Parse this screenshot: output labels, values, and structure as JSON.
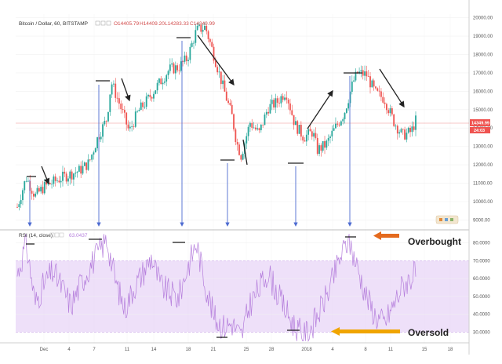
{
  "price_legend": {
    "symbol": "Bitcoin / Dollar, 60, BITSTAMP",
    "open": "O14405.79",
    "high": "H14409.20",
    "low": "L14283.33",
    "close": "C14349.99"
  },
  "rsi_legend": {
    "name": "RSI (14, close)",
    "value": "63.0437"
  },
  "annotations": {
    "overbought": "Overbought",
    "oversold": "Oversold"
  },
  "last_price_badge": "14349.99",
  "last_price_badge2": "24:03",
  "colors": {
    "up": "#26a69a",
    "down": "#ef5350",
    "rsi_line": "#b57edc",
    "rsi_band": "#e8d5f7",
    "overbought_arrow": "#e46a1e",
    "oversold_arrow": "#f0a500",
    "guide_arrow": "#4d6bd1"
  },
  "chart_data": [
    {
      "type": "candlestick",
      "title": "Bitcoin / Dollar, 60, BITSTAMP",
      "x_tick_labels": [
        "Dec",
        "4",
        "7",
        "11",
        "14",
        "18",
        "21",
        "25",
        "28",
        "2018",
        "4",
        "8",
        "11",
        "15",
        "18"
      ],
      "y_tick_labels": [
        "20000.00",
        "19000.00",
        "18000.00",
        "17000.00",
        "16000.00",
        "15000.00",
        "14000.00",
        "13000.00",
        "12000.00",
        "11000.00",
        "10000.00",
        "9000.00"
      ],
      "ylim": [
        8500,
        20200
      ],
      "price_path": [
        [
          0,
          9700
        ],
        [
          2,
          11300
        ],
        [
          4,
          10300
        ],
        [
          6,
          10800
        ],
        [
          10,
          11300
        ],
        [
          14,
          11700
        ],
        [
          16,
          12100
        ],
        [
          18,
          13500
        ],
        [
          20,
          14500
        ],
        [
          21,
          16500
        ],
        [
          23,
          15200
        ],
        [
          25,
          13800
        ],
        [
          27,
          14900
        ],
        [
          29,
          15500
        ],
        [
          31,
          16200
        ],
        [
          34,
          17200
        ],
        [
          36,
          17300
        ],
        [
          38,
          17800
        ],
        [
          40,
          19300
        ],
        [
          42,
          19500
        ],
        [
          44,
          17900
        ],
        [
          46,
          16200
        ],
        [
          48,
          14600
        ],
        [
          49,
          13200
        ],
        [
          50,
          12500
        ],
        [
          52,
          14300
        ],
        [
          54,
          13700
        ],
        [
          56,
          15100
        ],
        [
          58,
          15400
        ],
        [
          60,
          16000
        ],
        [
          62,
          14200
        ],
        [
          64,
          13500
        ],
        [
          66,
          13800
        ],
        [
          67,
          12800
        ],
        [
          69,
          13100
        ],
        [
          71,
          14000
        ],
        [
          73,
          14800
        ],
        [
          75,
          16500
        ],
        [
          76,
          17000
        ],
        [
          78,
          16900
        ],
        [
          80,
          15900
        ],
        [
          82,
          15600
        ],
        [
          84,
          14400
        ],
        [
          86,
          13600
        ],
        [
          88,
          13800
        ],
        [
          89,
          14400
        ]
      ],
      "x_range": [
        0,
        89
      ]
    },
    {
      "type": "line",
      "title": "RSI (14, close)",
      "y_tick_labels": [
        "80.0000",
        "70.0000",
        "60.0000",
        "50.0000",
        "40.0000",
        "30.0000"
      ],
      "ylim": [
        24,
        86
      ],
      "band": [
        30,
        70
      ],
      "rsi_path": [
        [
          0,
          62
        ],
        [
          2,
          80
        ],
        [
          4,
          46
        ],
        [
          6,
          57
        ],
        [
          8,
          64
        ],
        [
          10,
          55
        ],
        [
          12,
          45
        ],
        [
          14,
          56
        ],
        [
          16,
          66
        ],
        [
          18,
          74
        ],
        [
          20,
          82
        ],
        [
          22,
          58
        ],
        [
          24,
          43
        ],
        [
          26,
          55
        ],
        [
          28,
          63
        ],
        [
          30,
          72
        ],
        [
          32,
          56
        ],
        [
          34,
          52
        ],
        [
          36,
          49
        ],
        [
          38,
          66
        ],
        [
          40,
          80
        ],
        [
          42,
          57
        ],
        [
          44,
          38
        ],
        [
          46,
          33
        ],
        [
          48,
          35
        ],
        [
          50,
          27
        ],
        [
          52,
          46
        ],
        [
          54,
          54
        ],
        [
          56,
          64
        ],
        [
          58,
          52
        ],
        [
          60,
          42
        ],
        [
          62,
          33
        ],
        [
          64,
          28
        ],
        [
          66,
          34
        ],
        [
          68,
          44
        ],
        [
          70,
          56
        ],
        [
          72,
          71
        ],
        [
          74,
          82
        ],
        [
          76,
          66
        ],
        [
          78,
          50
        ],
        [
          80,
          39
        ],
        [
          82,
          35
        ],
        [
          84,
          45
        ],
        [
          86,
          56
        ],
        [
          89,
          63
        ]
      ]
    }
  ]
}
